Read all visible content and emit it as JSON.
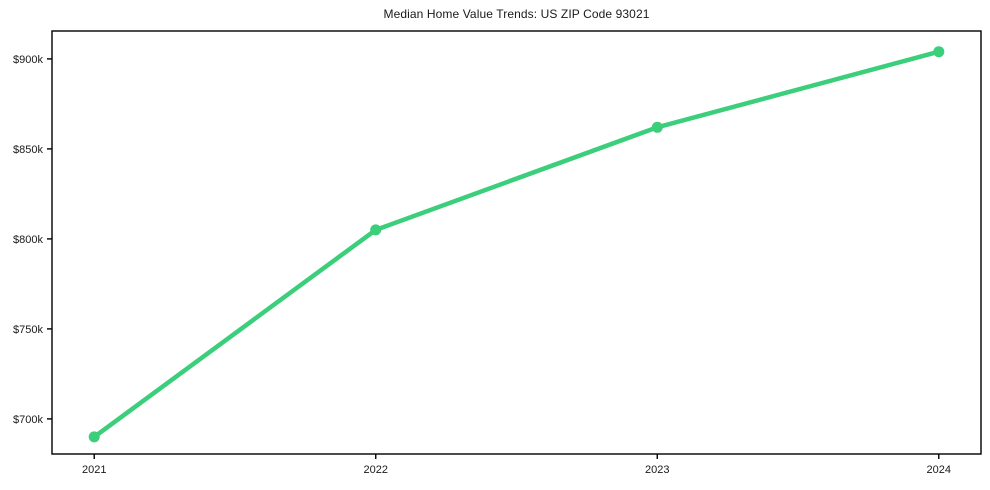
{
  "chart_data": {
    "type": "line",
    "title": "Median Home Value Trends: US ZIP Code 93021",
    "xlabel": "",
    "ylabel": "",
    "x": [
      2021,
      2022,
      2023,
      2024
    ],
    "x_tick_labels": [
      "2021",
      "2022",
      "2023",
      "2024"
    ],
    "series": [
      {
        "name": "Median Home Value (USD)",
        "values": [
          690000,
          805000,
          862000,
          904000
        ]
      }
    ],
    "y_tick_values": [
      700000,
      750000,
      800000,
      850000,
      900000
    ],
    "y_tick_labels": [
      "$700k",
      "$750k",
      "$800k",
      "$850k",
      "$900k"
    ],
    "xlim": [
      2020.85,
      2024.15
    ],
    "ylim": [
      680500,
      915500
    ],
    "grid": false,
    "legend": "none",
    "line_color": "#3bce7b",
    "marker": "circle",
    "background_color": "#ffffff",
    "axis_color": "#000000"
  }
}
